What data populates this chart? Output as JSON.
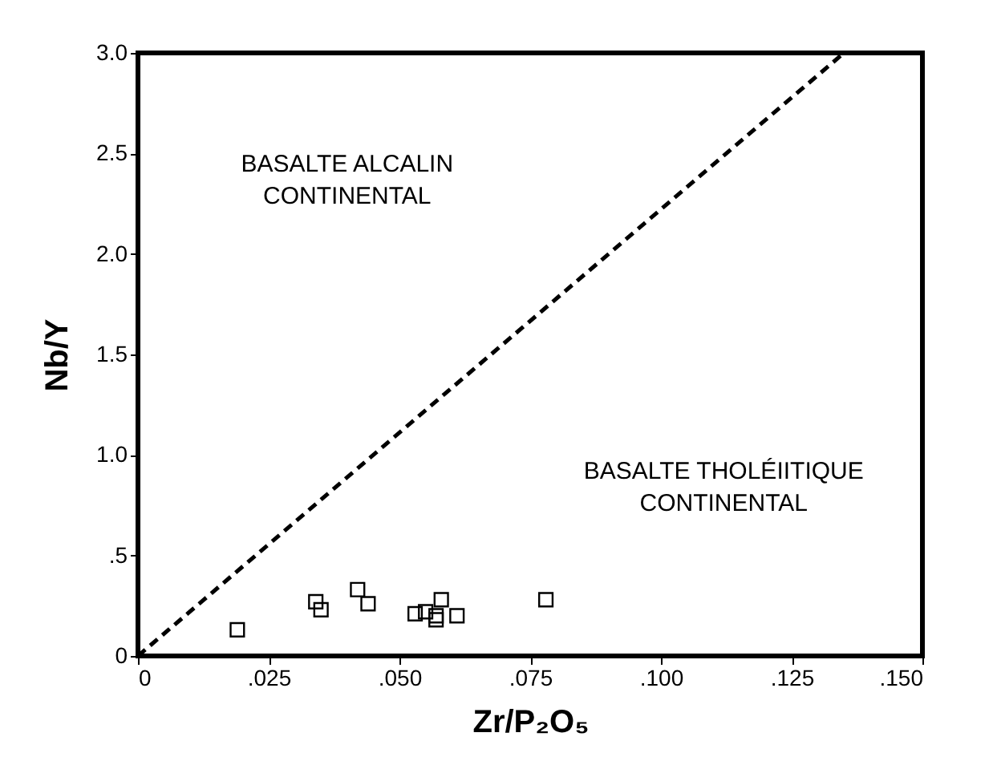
{
  "chart_data": {
    "type": "scatter",
    "xlabel": "Zr/P₂O₅",
    "ylabel": "Nb/Y",
    "xlim": [
      0,
      0.15
    ],
    "ylim": [
      0,
      3.0
    ],
    "xticks": [
      0,
      {
        "value": 0.025,
        "label": ".025"
      },
      {
        "value": 0.05,
        "label": ".050"
      },
      {
        "value": 0.075,
        "label": ".075"
      },
      {
        "value": 0.1,
        "label": ".100"
      },
      {
        "value": 0.125,
        "label": ".125"
      },
      {
        "value": 0.15,
        "label": ".150"
      }
    ],
    "yticks": [
      0,
      {
        "value": 0.5,
        "label": ".5"
      },
      {
        "value": 1,
        "label": "1.0"
      },
      {
        "value": 1.5,
        "label": "1.5"
      },
      {
        "value": 2,
        "label": "2.0"
      },
      {
        "value": 2.5,
        "label": "2.5"
      },
      {
        "value": 3,
        "label": "3.0"
      }
    ],
    "grid": false,
    "annotations": [
      "BASALTE ALCALIN\nCONTINENTAL",
      "BASALTE THOLÉIITIQUE\nCONTINENTAL"
    ],
    "series": [
      {
        "marker": "square",
        "color": "#000000",
        "x": [
          0.019,
          0.034,
          0.035,
          0.042,
          0.044,
          0.053,
          0.055,
          0.057,
          0.057,
          0.058,
          0.061,
          0.078
        ],
        "values": [
          0.13,
          0.27,
          0.23,
          0.33,
          0.26,
          0.21,
          0.22,
          0.2,
          0.18,
          0.28,
          0.2,
          0.28
        ]
      },
      {
        "type": "line",
        "color": "#000000",
        "line_style": "dashed",
        "x": [
          0,
          0.135
        ],
        "values": [
          0,
          3.0
        ]
      }
    ]
  }
}
